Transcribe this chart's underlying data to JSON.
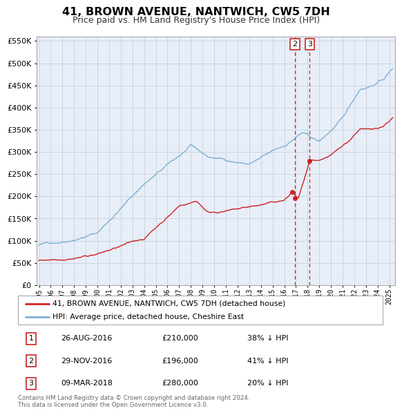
{
  "title": "41, BROWN AVENUE, NANTWICH, CW5 7DH",
  "subtitle": "Price paid vs. HM Land Registry's House Price Index (HPI)",
  "hpi_color": "#7bafd4",
  "price_color": "#cc2222",
  "background_color": "#ffffff",
  "plot_bg_color": "#e8eef8",
  "grid_color": "#c8d0dc",
  "ylim": [
    0,
    560000
  ],
  "xlim_start": 1994.8,
  "xlim_end": 2025.5,
  "legend_label_price": "41, BROWN AVENUE, NANTWICH, CW5 7DH (detached house)",
  "legend_label_hpi": "HPI: Average price, detached house, Cheshire East",
  "marker_dates": [
    2016.65,
    2016.92,
    2018.18
  ],
  "marker_prices": [
    210000,
    196000,
    280000
  ],
  "marker_labels": [
    "1",
    "2",
    "3"
  ],
  "vline_dates_labeled": [
    2016.92,
    2018.18
  ],
  "vline_labels": [
    "2",
    "3"
  ],
  "footnote": "Contains HM Land Registry data © Crown copyright and database right 2024.\nThis data is licensed under the Open Government Licence v3.0.",
  "yticks": [
    0,
    50000,
    100000,
    150000,
    200000,
    250000,
    300000,
    350000,
    400000,
    450000,
    500000,
    550000
  ],
  "table_rows": [
    [
      "1",
      "26-AUG-2016",
      "£210,000",
      "38% ↓ HPI"
    ],
    [
      "2",
      "29-NOV-2016",
      "£196,000",
      "41% ↓ HPI"
    ],
    [
      "3",
      "09-MAR-2018",
      "£280,000",
      "20% ↓ HPI"
    ]
  ]
}
